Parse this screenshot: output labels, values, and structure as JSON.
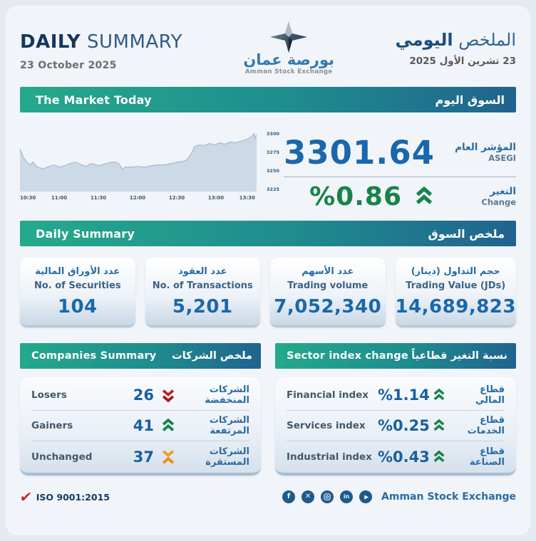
{
  "header": {
    "title_en_bold": "DAILY",
    "title_en_rest": " SUMMARY",
    "date_en": "23 October 2025",
    "logo_ar": "بورصة عمان",
    "logo_en": "Amman Stock Exchange",
    "title_ar_1": "الملخص ",
    "title_ar_2": "اليومي",
    "date_ar": "23 تشرين الأول 2025"
  },
  "market": {
    "banner_en": "The Market Today",
    "banner_ar": "السوق اليوم",
    "index_value": "3301.64",
    "index_label_ar": "المؤشر العام",
    "index_label_en": "ASEGI",
    "change_value": "%0.86",
    "change_label_ar": "التغير",
    "change_label_en": "Change",
    "change_direction": "up"
  },
  "chart_data": {
    "type": "area",
    "title": "ASEGI intraday index",
    "x_labels": [
      "10:30",
      "11:00",
      "11:30",
      "12:00",
      "12:30",
      "13:00",
      "13:30"
    ],
    "y_ticks": [
      3300,
      3275,
      3250,
      3225
    ],
    "ylim": [
      3222,
      3307
    ],
    "xlim_minutes": [
      0,
      180
    ],
    "grid": false,
    "points": [
      {
        "t": 0,
        "v": 3280
      },
      {
        "t": 2,
        "v": 3270
      },
      {
        "t": 5,
        "v": 3262
      },
      {
        "t": 8,
        "v": 3258
      },
      {
        "t": 10,
        "v": 3262
      },
      {
        "t": 12,
        "v": 3257
      },
      {
        "t": 15,
        "v": 3254
      },
      {
        "t": 18,
        "v": 3253
      },
      {
        "t": 22,
        "v": 3256
      },
      {
        "t": 26,
        "v": 3258
      },
      {
        "t": 30,
        "v": 3255
      },
      {
        "t": 34,
        "v": 3257
      },
      {
        "t": 38,
        "v": 3260
      },
      {
        "t": 42,
        "v": 3262
      },
      {
        "t": 46,
        "v": 3259
      },
      {
        "t": 50,
        "v": 3256
      },
      {
        "t": 54,
        "v": 3260
      },
      {
        "t": 58,
        "v": 3258
      },
      {
        "t": 60,
        "v": 3257
      },
      {
        "t": 64,
        "v": 3259
      },
      {
        "t": 68,
        "v": 3261
      },
      {
        "t": 72,
        "v": 3262
      },
      {
        "t": 75,
        "v": 3260
      },
      {
        "t": 78,
        "v": 3252
      },
      {
        "t": 80,
        "v": 3255
      },
      {
        "t": 85,
        "v": 3255
      },
      {
        "t": 90,
        "v": 3256
      },
      {
        "t": 95,
        "v": 3255
      },
      {
        "t": 100,
        "v": 3257
      },
      {
        "t": 105,
        "v": 3258
      },
      {
        "t": 110,
        "v": 3258
      },
      {
        "t": 115,
        "v": 3260
      },
      {
        "t": 120,
        "v": 3262
      },
      {
        "t": 124,
        "v": 3263
      },
      {
        "t": 127,
        "v": 3265
      },
      {
        "t": 130,
        "v": 3272
      },
      {
        "t": 133,
        "v": 3283
      },
      {
        "t": 136,
        "v": 3285
      },
      {
        "t": 140,
        "v": 3284
      },
      {
        "t": 144,
        "v": 3287
      },
      {
        "t": 148,
        "v": 3285
      },
      {
        "t": 152,
        "v": 3288
      },
      {
        "t": 156,
        "v": 3286
      },
      {
        "t": 160,
        "v": 3289
      },
      {
        "t": 164,
        "v": 3288
      },
      {
        "t": 168,
        "v": 3290
      },
      {
        "t": 172,
        "v": 3292
      },
      {
        "t": 176,
        "v": 3296
      },
      {
        "t": 178,
        "v": 3300
      },
      {
        "t": 179,
        "v": 3294
      },
      {
        "t": 180,
        "v": 3299
      }
    ]
  },
  "summary": {
    "banner_en": "Daily Summary",
    "banner_ar": "ملخص السوق",
    "stats": [
      {
        "label_ar": "عدد الأوراق المالية",
        "label_en": "No. of Securities",
        "value": "104"
      },
      {
        "label_ar": "عدد العقود",
        "label_en": "No. of Transactions",
        "value": "5,201"
      },
      {
        "label_ar": "عدد الأسهم",
        "label_en": "Trading volume",
        "value": "7,052,340"
      },
      {
        "label_ar": "حجم التداول (دينار)",
        "label_en": "Trading Value (JDs)",
        "value": "14,689,823"
      }
    ]
  },
  "companies": {
    "banner_en": "Companies Summary",
    "banner_ar": "ملخص الشركات",
    "rows": [
      {
        "label_en": "Losers",
        "value": "26",
        "direction": "down",
        "label_ar": "الشركات المنخفضة"
      },
      {
        "label_en": "Gainers",
        "value": "41",
        "direction": "up",
        "label_ar": "الشركات المرتفعة"
      },
      {
        "label_en": "Unchanged",
        "value": "37",
        "direction": "neutral",
        "label_ar": "الشركات المستقرة"
      }
    ]
  },
  "sectors": {
    "banner_en": "Sector index change",
    "banner_ar": "نسبة التغير قطاعياً",
    "rows": [
      {
        "label_en": "Financial index",
        "value": "%1.14",
        "direction": "up",
        "label_ar": "قطاع المالي"
      },
      {
        "label_en": "Services index",
        "value": "%0.25",
        "direction": "up",
        "label_ar": "قطاع الخدمات"
      },
      {
        "label_en": "Industrial index",
        "value": "%0.43",
        "direction": "up",
        "label_ar": "قطاع الصناعة"
      }
    ]
  },
  "footer": {
    "iso": "ISO 9001:2015",
    "org": "Amman Stock Exchange",
    "social_icons": [
      "facebook-icon",
      "x-twitter-icon",
      "instagram-icon",
      "linkedin-icon",
      "youtube-icon"
    ]
  },
  "colors": {
    "banner_gradient_left": "#25a98c",
    "banner_gradient_right": "#20638e",
    "index_blue": "#1a67ac",
    "change_green": "#17834a",
    "losers_red": "#c4212e",
    "unchanged_orange": "#f2a11c",
    "navy_text": "#14375e",
    "arabic_blue": "#2a6ba3",
    "chart_fill": "#ccd9e7",
    "page_background": "#f1f4f8"
  }
}
